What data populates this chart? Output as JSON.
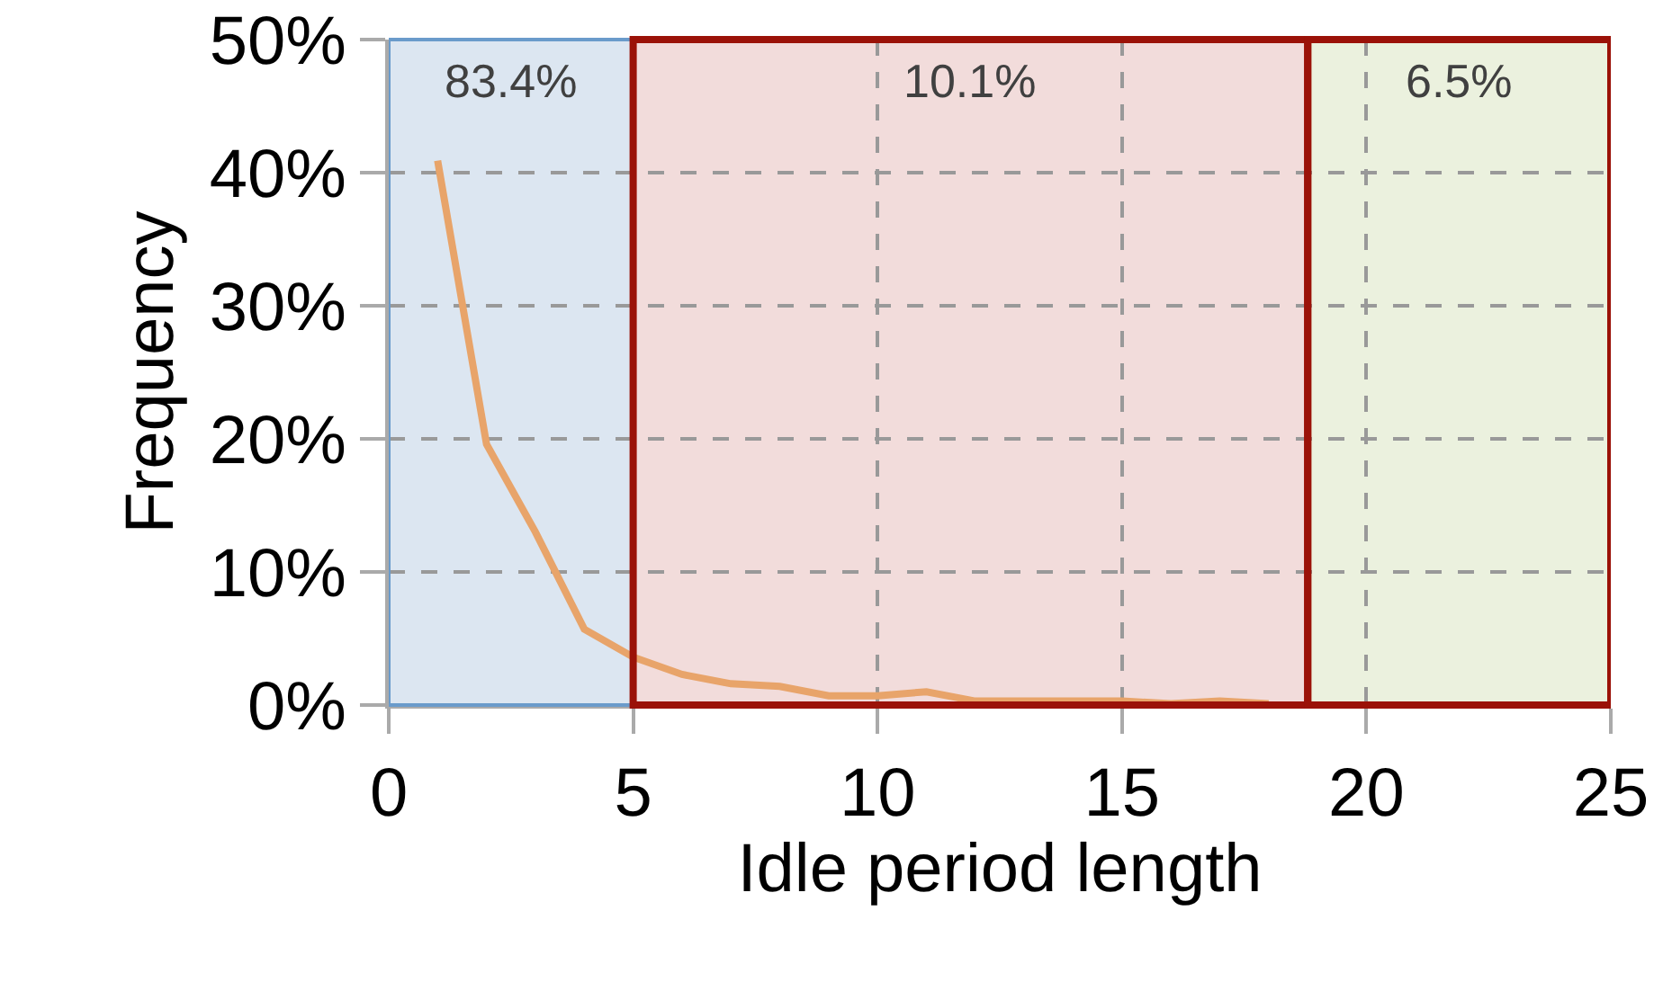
{
  "chart_data": {
    "type": "line",
    "xlabel": "Idle period length",
    "ylabel": "Frequency",
    "x": [
      1,
      2,
      3,
      4,
      5,
      6,
      7,
      8,
      9,
      10,
      11,
      12,
      13,
      14,
      15,
      16,
      17,
      18
    ],
    "series": [
      {
        "color": "#e8a46a",
        "values": [
          40.9,
          19.6,
          13,
          5.7,
          3.6,
          2.3,
          1.6,
          1.4,
          0.7,
          0.7,
          1.0,
          0.3,
          0.3,
          0.3,
          0.3,
          0.1,
          0.3,
          0.1
        ]
      }
    ],
    "xlim": [
      0,
      25
    ],
    "xticks": [
      0,
      5,
      10,
      15,
      20,
      25
    ],
    "ylim": [
      0,
      50
    ],
    "yticks": [
      {
        "value": 0,
        "label": "0%"
      },
      {
        "value": 10,
        "label": "10%"
      },
      {
        "value": 20,
        "label": "20%"
      },
      {
        "value": 30,
        "label": "30%"
      },
      {
        "value": 40,
        "label": "40%"
      },
      {
        "value": 50,
        "label": "50%"
      }
    ],
    "bands": [
      {
        "axis": "x",
        "from": 0,
        "to": 5,
        "label": "83.4%",
        "color": "#dce6f1"
      },
      {
        "axis": "x",
        "from": 5,
        "to": 18.8,
        "label": "10.1%",
        "color": "#f2dcdb"
      },
      {
        "axis": "x",
        "from": 18.8,
        "to": 25,
        "label": "6.5%",
        "color": "#ebf1de"
      }
    ],
    "grid": true,
    "marker": "none",
    "line_style": "solid"
  }
}
